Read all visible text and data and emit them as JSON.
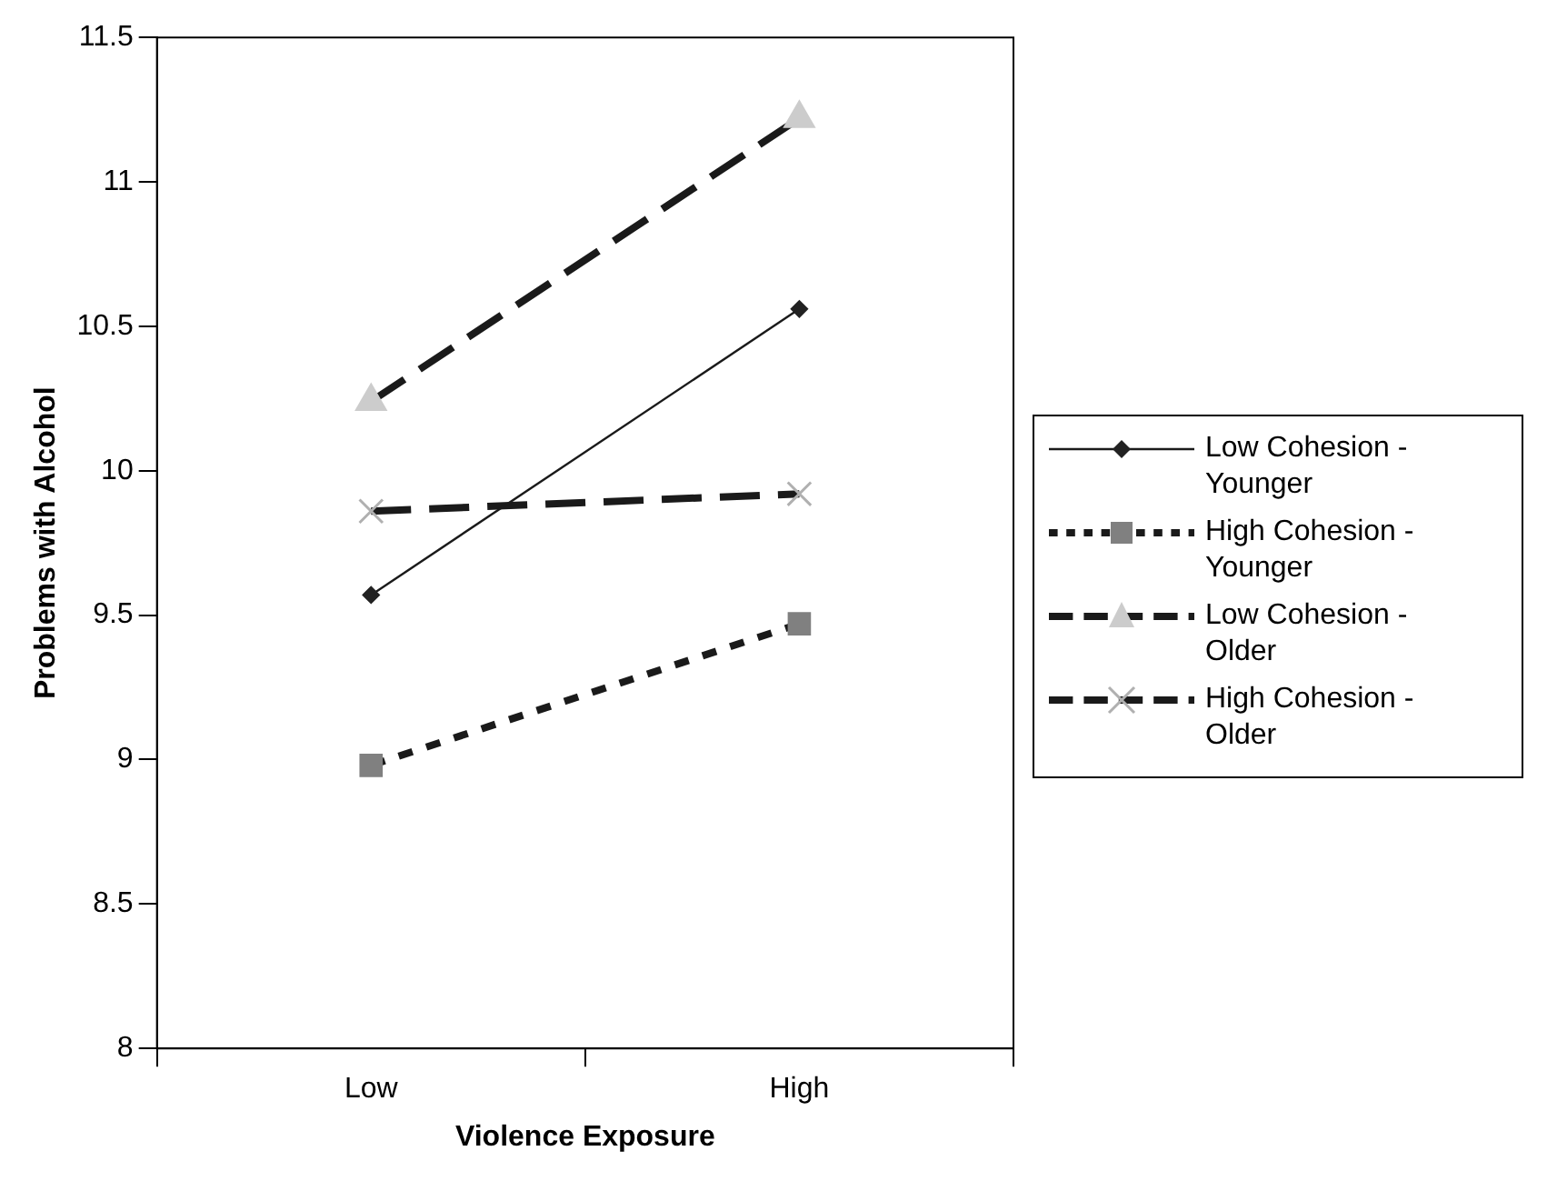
{
  "chart_data": {
    "type": "line",
    "xlabel": "Violence Exposure",
    "ylabel": "Problems with Alcohol",
    "categories": [
      "Low",
      "High"
    ],
    "series": [
      {
        "name": "Low Cohesion - Younger",
        "color": "#1a1a1a",
        "values": [
          9.57,
          10.56
        ],
        "marker": "diamond",
        "line_style": "solid"
      },
      {
        "name": "High Cohesion - Younger",
        "color": "#1a1a1a",
        "values": [
          8.98,
          9.47
        ],
        "marker": "square",
        "line_style": "dotted"
      },
      {
        "name": "Low Cohesion - Older",
        "color": "#1a1a1a",
        "values": [
          10.24,
          11.22
        ],
        "marker": "triangle",
        "line_style": "dashed"
      },
      {
        "name": "High Cohesion - Older",
        "color": "#1a1a1a",
        "values": [
          9.86,
          9.92
        ],
        "marker": "cross",
        "line_style": "dashed"
      }
    ],
    "ylim": [
      8,
      11.5
    ],
    "yticks": [
      8,
      8.5,
      9,
      9.5,
      10,
      10.5,
      11,
      11.5
    ],
    "grid": false,
    "legend": "right"
  }
}
